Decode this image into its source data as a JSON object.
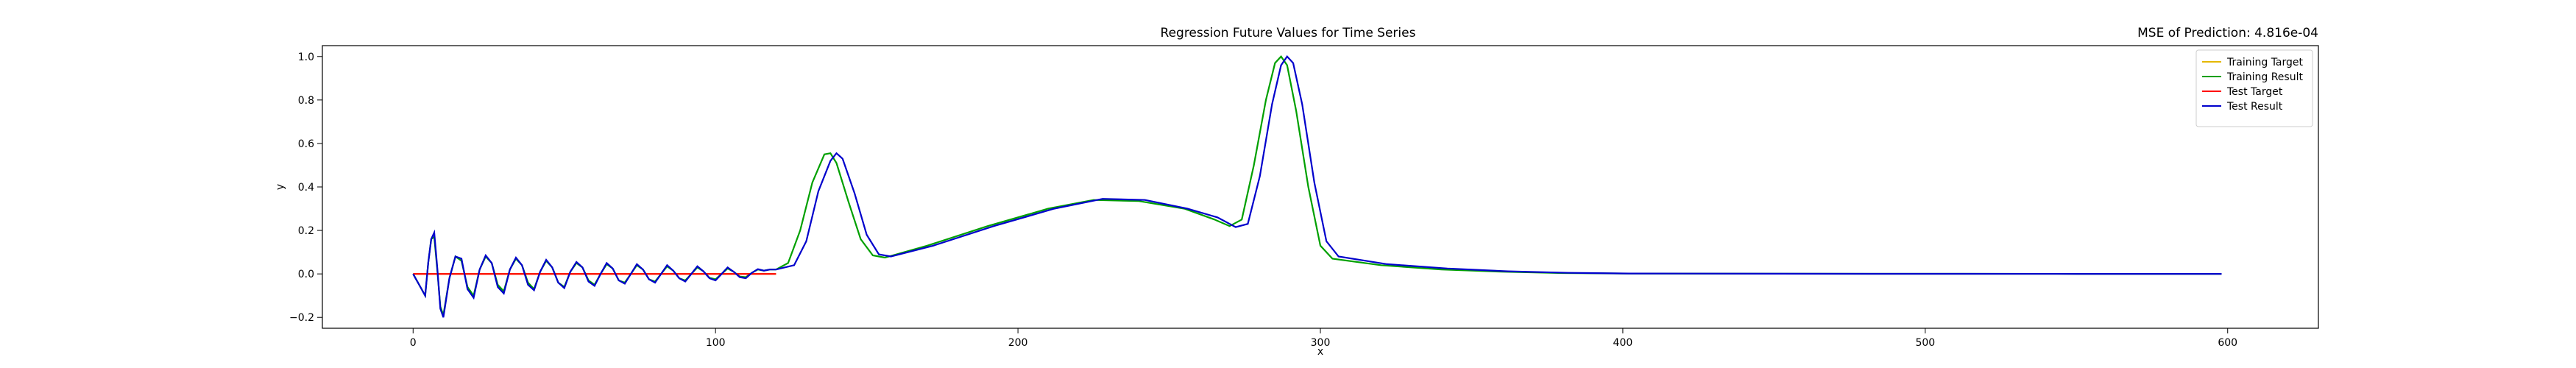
{
  "chart_data": {
    "type": "line",
    "title": "Regression Future Values for Time Series",
    "subtitle": "MSE of Prediction: 4.816e-04",
    "xlabel": "x",
    "ylabel": "y",
    "xlim": [
      -30,
      630
    ],
    "ylim": [
      -0.25,
      1.05
    ],
    "xticks": [
      0,
      100,
      200,
      300,
      400,
      500,
      600
    ],
    "yticks": [
      -0.2,
      0.0,
      0.2,
      0.4,
      0.6,
      0.8,
      1.0
    ],
    "grid": false,
    "legend_placement": "top-right",
    "series": [
      {
        "name": "Training Target",
        "color": "#e5b800",
        "points": [
          [
            0,
            0
          ],
          [
            60,
            0
          ],
          [
            120,
            0
          ]
        ]
      },
      {
        "name": "Training Result",
        "color": "#00a000",
        "points": [
          [
            0,
            0
          ],
          [
            2,
            -0.05
          ],
          [
            4,
            -0.1
          ],
          [
            5,
            0.05
          ],
          [
            6,
            0.16
          ],
          [
            7,
            0.17
          ],
          [
            8,
            0.02
          ],
          [
            9,
            -0.15
          ],
          [
            10,
            -0.19
          ],
          [
            12,
            -0.02
          ],
          [
            14,
            0.08
          ],
          [
            16,
            0.06
          ],
          [
            18,
            -0.06
          ],
          [
            20,
            -0.1
          ],
          [
            22,
            0.02
          ],
          [
            24,
            0.08
          ],
          [
            26,
            0.05
          ],
          [
            28,
            -0.05
          ],
          [
            30,
            -0.08
          ],
          [
            32,
            0.02
          ],
          [
            34,
            0.07
          ],
          [
            36,
            0.04
          ],
          [
            38,
            -0.04
          ],
          [
            40,
            -0.07
          ],
          [
            42,
            0.01
          ],
          [
            44,
            0.06
          ],
          [
            46,
            0.03
          ],
          [
            48,
            -0.04
          ],
          [
            50,
            -0.06
          ],
          [
            52,
            0.01
          ],
          [
            54,
            0.05
          ],
          [
            56,
            0.03
          ],
          [
            58,
            -0.03
          ],
          [
            60,
            -0.05
          ],
          [
            62,
            0.0
          ],
          [
            64,
            0.045
          ],
          [
            66,
            0.025
          ],
          [
            68,
            -0.03
          ],
          [
            70,
            -0.04
          ],
          [
            72,
            0.0
          ],
          [
            74,
            0.04
          ],
          [
            76,
            0.02
          ],
          [
            78,
            -0.025
          ],
          [
            80,
            -0.035
          ],
          [
            82,
            0.0
          ],
          [
            84,
            0.035
          ],
          [
            86,
            0.015
          ],
          [
            88,
            -0.02
          ],
          [
            90,
            -0.03
          ],
          [
            92,
            0.0
          ],
          [
            94,
            0.03
          ],
          [
            96,
            0.012
          ],
          [
            98,
            -0.018
          ],
          [
            100,
            -0.025
          ],
          [
            102,
            0.0
          ],
          [
            104,
            0.025
          ],
          [
            106,
            0.01
          ],
          [
            108,
            -0.012
          ],
          [
            110,
            -0.015
          ],
          [
            112,
            0.005
          ],
          [
            114,
            0.02
          ],
          [
            116,
            0.015
          ],
          [
            118,
            0.02
          ],
          [
            120,
            0.02
          ],
          [
            124,
            0.05
          ],
          [
            128,
            0.2
          ],
          [
            132,
            0.42
          ],
          [
            136,
            0.55
          ],
          [
            138,
            0.555
          ],
          [
            140,
            0.51
          ],
          [
            144,
            0.33
          ],
          [
            148,
            0.16
          ],
          [
            152,
            0.085
          ],
          [
            156,
            0.075
          ],
          [
            170,
            0.13
          ],
          [
            190,
            0.22
          ],
          [
            210,
            0.3
          ],
          [
            225,
            0.34
          ],
          [
            240,
            0.335
          ],
          [
            255,
            0.3
          ],
          [
            265,
            0.25
          ],
          [
            270,
            0.22
          ],
          [
            274,
            0.25
          ],
          [
            278,
            0.5
          ],
          [
            282,
            0.8
          ],
          [
            285,
            0.97
          ],
          [
            287,
            1.0
          ],
          [
            289,
            0.96
          ],
          [
            292,
            0.75
          ],
          [
            296,
            0.4
          ],
          [
            300,
            0.13
          ],
          [
            304,
            0.07
          ],
          [
            320,
            0.04
          ],
          [
            340,
            0.02
          ],
          [
            360,
            0.01
          ],
          [
            380,
            0.004
          ],
          [
            400,
            0.002
          ],
          [
            450,
            0.001
          ],
          [
            500,
            0.0005
          ],
          [
            550,
            0.0003
          ],
          [
            598,
            0.0002
          ]
        ]
      },
      {
        "name": "Test Target",
        "color": "#ff0000",
        "points": [
          [
            0,
            0
          ],
          [
            60,
            0
          ],
          [
            120,
            0
          ]
        ]
      },
      {
        "name": "Test Result",
        "color": "#0000cc",
        "points": [
          [
            0,
            0
          ],
          [
            2,
            -0.05
          ],
          [
            4,
            -0.1
          ],
          [
            5,
            0.05
          ],
          [
            6,
            0.16
          ],
          [
            7,
            0.19
          ],
          [
            8,
            0.03
          ],
          [
            9,
            -0.16
          ],
          [
            10,
            -0.2
          ],
          [
            12,
            -0.02
          ],
          [
            14,
            0.08
          ],
          [
            16,
            0.07
          ],
          [
            18,
            -0.07
          ],
          [
            20,
            -0.11
          ],
          [
            22,
            0.02
          ],
          [
            24,
            0.085
          ],
          [
            26,
            0.05
          ],
          [
            28,
            -0.06
          ],
          [
            30,
            -0.09
          ],
          [
            32,
            0.02
          ],
          [
            34,
            0.075
          ],
          [
            36,
            0.04
          ],
          [
            38,
            -0.05
          ],
          [
            40,
            -0.075
          ],
          [
            42,
            0.01
          ],
          [
            44,
            0.065
          ],
          [
            46,
            0.03
          ],
          [
            48,
            -0.04
          ],
          [
            50,
            -0.065
          ],
          [
            52,
            0.01
          ],
          [
            54,
            0.055
          ],
          [
            56,
            0.03
          ],
          [
            58,
            -0.035
          ],
          [
            60,
            -0.055
          ],
          [
            62,
            0.0
          ],
          [
            64,
            0.05
          ],
          [
            66,
            0.025
          ],
          [
            68,
            -0.03
          ],
          [
            70,
            -0.045
          ],
          [
            72,
            0.0
          ],
          [
            74,
            0.045
          ],
          [
            76,
            0.02
          ],
          [
            78,
            -0.025
          ],
          [
            80,
            -0.04
          ],
          [
            82,
            0.0
          ],
          [
            84,
            0.04
          ],
          [
            86,
            0.015
          ],
          [
            88,
            -0.02
          ],
          [
            90,
            -0.035
          ],
          [
            92,
            0.0
          ],
          [
            94,
            0.035
          ],
          [
            96,
            0.012
          ],
          [
            98,
            -0.02
          ],
          [
            100,
            -0.03
          ],
          [
            102,
            0.0
          ],
          [
            104,
            0.03
          ],
          [
            106,
            0.01
          ],
          [
            108,
            -0.015
          ],
          [
            110,
            -0.02
          ],
          [
            112,
            0.005
          ],
          [
            114,
            0.022
          ],
          [
            116,
            0.015
          ],
          [
            118,
            0.02
          ],
          [
            120,
            0.02
          ],
          [
            126,
            0.04
          ],
          [
            130,
            0.15
          ],
          [
            134,
            0.38
          ],
          [
            138,
            0.52
          ],
          [
            140,
            0.555
          ],
          [
            142,
            0.53
          ],
          [
            146,
            0.37
          ],
          [
            150,
            0.18
          ],
          [
            154,
            0.09
          ],
          [
            158,
            0.08
          ],
          [
            172,
            0.13
          ],
          [
            192,
            0.22
          ],
          [
            212,
            0.3
          ],
          [
            228,
            0.345
          ],
          [
            242,
            0.34
          ],
          [
            256,
            0.3
          ],
          [
            266,
            0.26
          ],
          [
            272,
            0.215
          ],
          [
            276,
            0.23
          ],
          [
            280,
            0.45
          ],
          [
            284,
            0.78
          ],
          [
            287,
            0.96
          ],
          [
            289,
            1.0
          ],
          [
            291,
            0.97
          ],
          [
            294,
            0.78
          ],
          [
            298,
            0.42
          ],
          [
            302,
            0.15
          ],
          [
            306,
            0.08
          ],
          [
            322,
            0.045
          ],
          [
            342,
            0.025
          ],
          [
            362,
            0.012
          ],
          [
            382,
            0.005
          ],
          [
            402,
            0.002
          ],
          [
            450,
            0.001
          ],
          [
            500,
            0.0005
          ],
          [
            550,
            0.0003
          ],
          [
            598,
            0.0002
          ]
        ]
      }
    ]
  }
}
